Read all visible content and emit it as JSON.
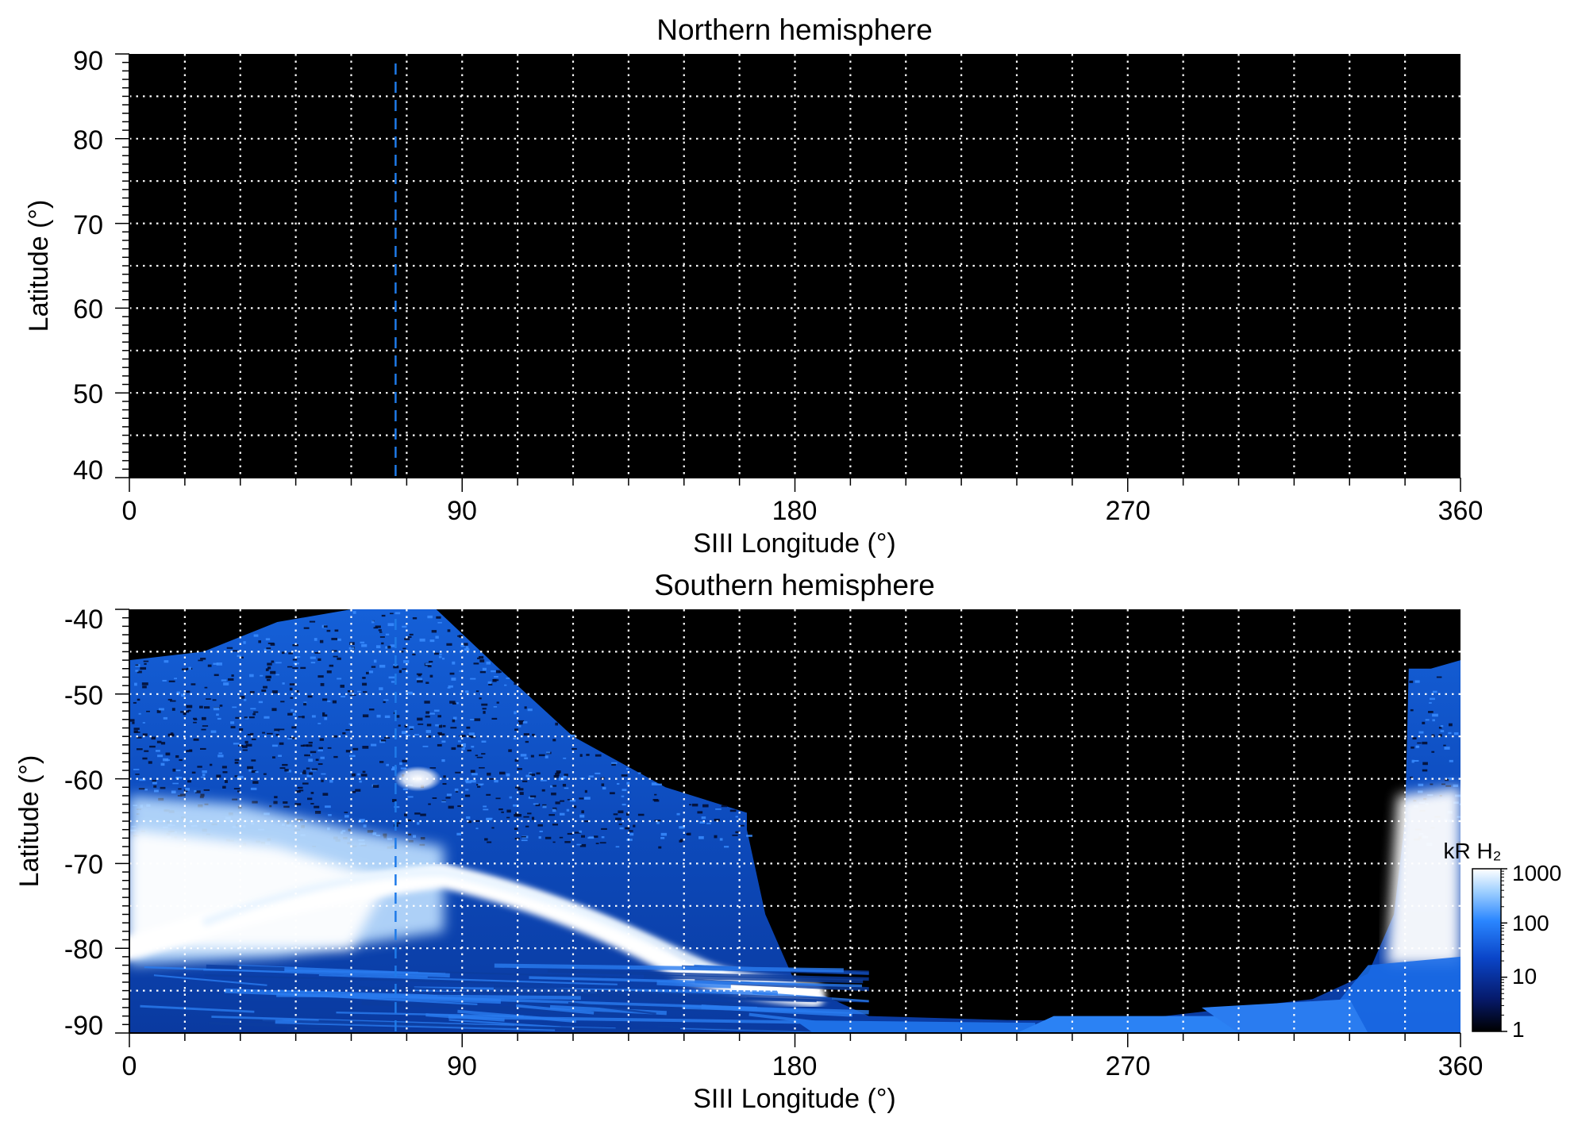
{
  "chart_data": [
    {
      "type": "heatmap",
      "title": "Northern hemisphere",
      "xlabel": "SIII Longitude (°)",
      "ylabel": "Latitude (°)",
      "xlim": [
        0,
        360
      ],
      "ylim": [
        40,
        90
      ],
      "x_ticks": [
        "0",
        "90",
        "180",
        "270",
        "360"
      ],
      "y_ticks": [
        "40",
        "50",
        "60",
        "70",
        "80",
        "90"
      ],
      "grid": true,
      "grid_style": "dotted white, every 15° longitude and 5° latitude",
      "background_color": "#000000",
      "emission_regions": [],
      "marker_line": {
        "longitude": 72,
        "style": "dashed",
        "color": "#1e7ae8"
      }
    },
    {
      "type": "heatmap",
      "title": "Southern hemisphere",
      "xlabel": "SIII Longitude (°)",
      "ylabel": "Latitude (°)",
      "xlim": [
        0,
        360
      ],
      "ylim": [
        -90,
        -40
      ],
      "x_ticks": [
        "0",
        "90",
        "180",
        "270",
        "360"
      ],
      "y_ticks": [
        "-40",
        "-50",
        "-60",
        "-70",
        "-80",
        "-90"
      ],
      "grid": true,
      "grid_style": "dotted white, every 15° longitude and 5° latitude",
      "background_color": "#000000",
      "coverage_boundary": [
        [
          0,
          -46
        ],
        [
          20,
          -45
        ],
        [
          40,
          -41.5
        ],
        [
          60,
          -40
        ],
        [
          83,
          -40
        ],
        [
          100,
          -47
        ],
        [
          120,
          -55
        ],
        [
          145,
          -61
        ],
        [
          167,
          -64
        ],
        [
          167,
          -66
        ],
        [
          172,
          -76
        ],
        [
          180,
          -84
        ],
        [
          200,
          -88
        ],
        [
          240,
          -88.5
        ],
        [
          270,
          -88.5
        ],
        [
          300,
          -87
        ],
        [
          320,
          -86
        ],
        [
          335,
          -83
        ],
        [
          342,
          -76
        ],
        [
          345,
          -65
        ],
        [
          346,
          -47
        ],
        [
          352,
          -47
        ],
        [
          360,
          -46
        ]
      ],
      "auroral_oval_longitude_range": [
        0,
        185
      ],
      "auroral_oval_peak": [
        85,
        -71
      ],
      "bright_spot": {
        "longitude": 78,
        "latitude": -60
      },
      "marker_line": {
        "longitude": 72,
        "style": "dashed",
        "color": "#1e7ae8"
      },
      "colorbar": {
        "label": "kR H₂",
        "scale": "log",
        "range": [
          1,
          1000
        ],
        "ticks": [
          "1",
          "10",
          "100",
          "1000"
        ],
        "colors": [
          "#000000",
          "#061a6b",
          "#0a45c8",
          "#2a86ff",
          "#9fd0ff",
          "#ffffff"
        ]
      }
    }
  ]
}
